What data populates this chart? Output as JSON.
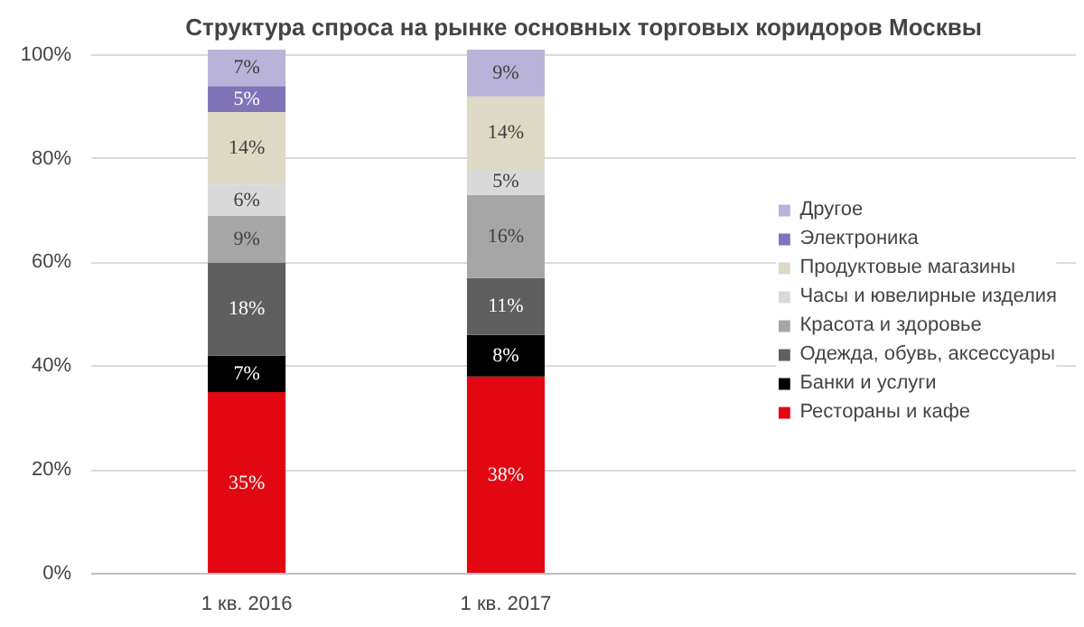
{
  "chart_data": {
    "type": "bar",
    "stacked": true,
    "title": "Структура спроса на рынке основных торговых коридоров Москвы",
    "categories": [
      "1 кв. 2016",
      "1 кв. 2017"
    ],
    "ylim": [
      0,
      101
    ],
    "yticks": [
      {
        "value": 0,
        "label": "0%"
      },
      {
        "value": 20,
        "label": "20%"
      },
      {
        "value": 40,
        "label": "40%"
      },
      {
        "value": 60,
        "label": "60%"
      },
      {
        "value": 80,
        "label": "80%"
      },
      {
        "value": 100,
        "label": "100%"
      }
    ],
    "grid": "y",
    "legend": "right",
    "series": [
      {
        "name": "Рестораны и кафе",
        "color": "#e30613",
        "values": [
          35,
          38
        ],
        "value_labels": [
          "35%",
          "38%"
        ]
      },
      {
        "name": "Банки и услуги",
        "color": "#000000",
        "values": [
          7,
          8
        ],
        "value_labels": [
          "7%",
          "8%"
        ]
      },
      {
        "name": "Одежда, обувь, аксессуары",
        "color": "#5f5f5f",
        "values": [
          18,
          11
        ],
        "value_labels": [
          "18%",
          "11%"
        ]
      },
      {
        "name": "Красота и здоровье",
        "color": "#a6a6a6",
        "values": [
          9,
          16
        ],
        "value_labels": [
          "9%",
          "16%"
        ]
      },
      {
        "name": "Часы и ювелирные изделия",
        "color": "#d9d9d9",
        "values": [
          6,
          5
        ],
        "value_labels": [
          "6%",
          "5%"
        ]
      },
      {
        "name": "Продуктовые магазины",
        "color": "#ddd9c4",
        "values": [
          14,
          14
        ],
        "value_labels": [
          "14%",
          "14%"
        ]
      },
      {
        "name": "Электроника",
        "color": "#8073b8",
        "values": [
          5,
          null
        ],
        "value_labels": [
          "5%",
          null
        ]
      },
      {
        "name": "Другое",
        "color": "#b9b3d9",
        "values": [
          7,
          9
        ],
        "value_labels": [
          "7%",
          "9%"
        ]
      }
    ]
  }
}
